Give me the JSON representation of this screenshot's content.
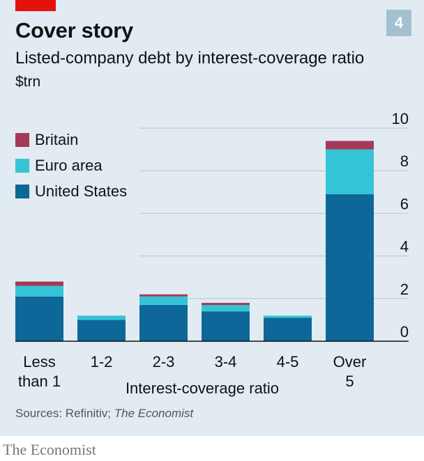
{
  "header": {
    "title": "Cover story",
    "chart_number": "4",
    "subtitle": "Listed-company debt by interest-coverage ratio",
    "unit": "$trn"
  },
  "colors": {
    "britain": "#a5395a",
    "euro_area": "#35c4d5",
    "united_states": "#0d6798",
    "background": "#e1ebf1",
    "accent_red": "#e3120b"
  },
  "chart_data": {
    "type": "bar",
    "stacked": true,
    "title": "Listed-company debt by interest-coverage ratio",
    "ylabel": "$trn",
    "xlabel": "Interest-coverage ratio",
    "categories": [
      [
        "Less",
        "than 1"
      ],
      [
        "1-2"
      ],
      [
        "2-3"
      ],
      [
        "3-4"
      ],
      [
        "4-5"
      ],
      [
        "Over",
        "5"
      ]
    ],
    "series": [
      {
        "name": "United States",
        "color": "#0d6798",
        "values": [
          2.1,
          1.0,
          1.7,
          1.4,
          1.1,
          6.9
        ]
      },
      {
        "name": "Euro area",
        "color": "#35c4d5",
        "values": [
          0.5,
          0.2,
          0.4,
          0.3,
          0.1,
          2.1
        ]
      },
      {
        "name": "Britain",
        "color": "#a5395a",
        "values": [
          0.2,
          0.0,
          0.1,
          0.1,
          0.0,
          0.4
        ]
      }
    ],
    "ylim": [
      0,
      10
    ],
    "yticks": [
      0,
      2,
      4,
      6,
      8,
      10
    ],
    "grid": true,
    "legend_position": "top-left",
    "axis_side": "right"
  },
  "source": {
    "prefix": "Sources: Refinitiv; ",
    "publication": "The Economist"
  },
  "brand": "The Economist"
}
